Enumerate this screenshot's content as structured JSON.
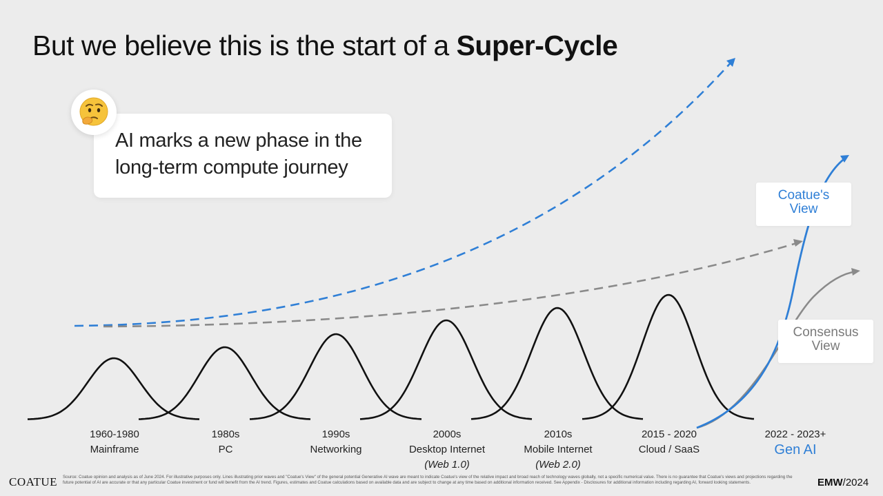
{
  "title": {
    "prefix": "But we believe this is the start of a ",
    "emphasis": "Super-Cycle"
  },
  "callout": {
    "emoji": "thinking-face",
    "line1": "AI marks a new phase in the",
    "line2": "long-term compute journey"
  },
  "views": {
    "coatue": {
      "line1": "Coatue's",
      "line2": "View",
      "color": "#2f7fd6"
    },
    "consensus": {
      "line1": "Consensus",
      "line2": "View",
      "color": "#7a7a7a"
    }
  },
  "waves": [
    {
      "period": "1960-1980",
      "name": "Mainframe",
      "sub": ""
    },
    {
      "period": "1980s",
      "name": "PC",
      "sub": ""
    },
    {
      "period": "1990s",
      "name": "Networking",
      "sub": ""
    },
    {
      "period": "2000s",
      "name": "Desktop Internet",
      "sub": "(Web 1.0)"
    },
    {
      "period": "2010s",
      "name": "Mobile Internet",
      "sub": "(Web 2.0)"
    },
    {
      "period": "2015 - 2020",
      "name": "Cloud / SaaS",
      "sub": ""
    },
    {
      "period": "2022 - 2023+",
      "name": "Gen AI",
      "sub": ""
    }
  ],
  "colors": {
    "accent": "#2f7fd6",
    "consensus": "#8a8a8a",
    "wave": "#111111",
    "background": "#ececec"
  },
  "footer": {
    "logo": "COATUE",
    "note": "Source: Coatue opinion and analysis as of June 2024. For illustrative purposes only. Lines illustrating prior waves and \"Coatue's View\" of the general potential Generative AI wave are meant to indicate Coatue's view of the relative impact and broad reach of technology waves globally, not a specific numerical value. There is no guarantee that Coatue's views and projections regarding the future potential of AI are accurate or that any particular Coatue investment or fund will benefit from the AI trend. Figures, estimates and Coatue calculations based on available data and are subject to change at any time based on additional information received. See Appendix - Disclosures for additional information including regarding AI, forward looking statements.",
    "event_bold": "EMW",
    "event_year": "/2024"
  }
}
